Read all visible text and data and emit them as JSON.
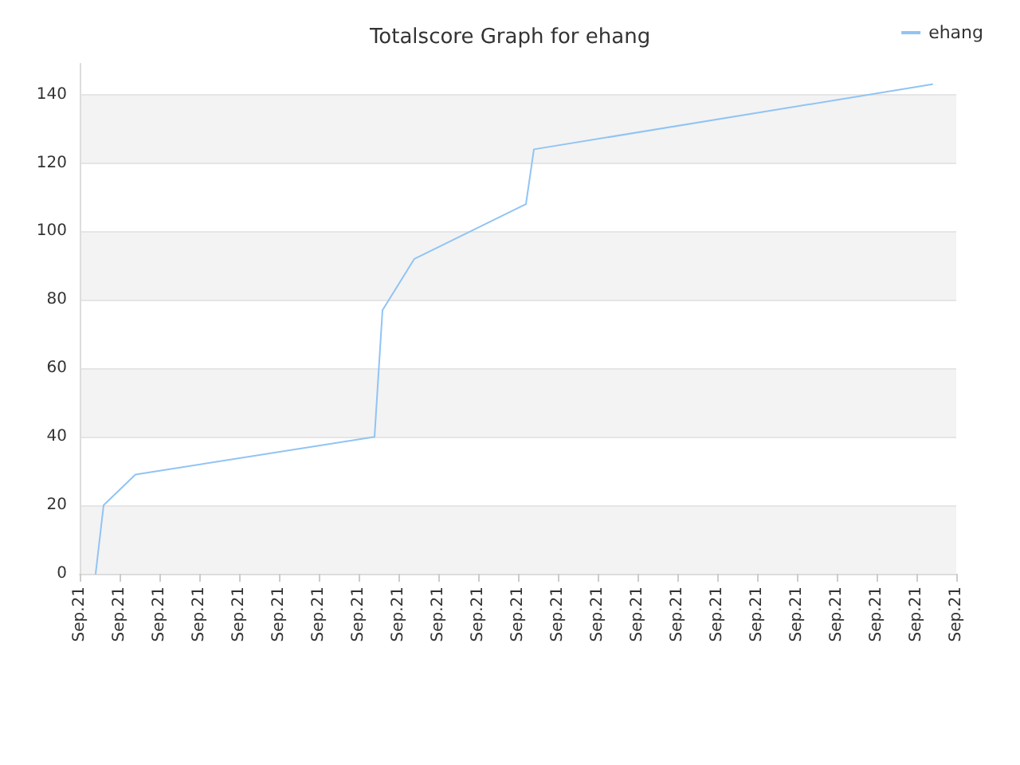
{
  "chart_data": {
    "type": "line",
    "title": "Totalscore Graph for ehang",
    "categories": [
      "Sep.21",
      null,
      null,
      null,
      null,
      "Sep.21",
      null,
      null,
      null,
      null,
      "Sep.21",
      null,
      null,
      null,
      null,
      "Sep.21",
      null,
      null,
      null,
      null,
      "Sep.21",
      null,
      null,
      null,
      null,
      "Sep.21",
      null,
      null,
      null,
      null,
      "Sep.21",
      null,
      null,
      null,
      null,
      "Sep.21",
      null,
      null,
      null,
      null,
      "Sep.21",
      null,
      null,
      null,
      null,
      "Sep.21",
      null,
      null,
      null,
      null,
      "Sep.21",
      null,
      null,
      null,
      null,
      "Sep.21",
      null,
      null,
      null,
      null,
      "Sep.21",
      null,
      null,
      null,
      null,
      "Sep.21",
      null,
      null,
      null,
      null,
      "Sep.21",
      null,
      null,
      null,
      null,
      "Sep.21",
      null,
      null,
      null,
      null,
      "Sep.21",
      null,
      null,
      null,
      null,
      "Sep.21",
      null,
      null,
      null,
      null,
      "Sep.21",
      null,
      null,
      null,
      null,
      "Sep.21",
      null,
      null,
      null,
      null,
      "Sep.21",
      null,
      null,
      null,
      null,
      "Sep.21",
      null,
      null,
      null,
      null,
      "Sep.21"
    ],
    "series": [
      {
        "name": "ehang",
        "color": "#90c4f4",
        "values": [
          null,
          null,
          0,
          20,
          null,
          null,
          null,
          29,
          null,
          null,
          null,
          null,
          null,
          null,
          null,
          null,
          null,
          null,
          null,
          null,
          null,
          null,
          null,
          null,
          null,
          null,
          null,
          null,
          null,
          null,
          null,
          null,
          null,
          null,
          null,
          null,
          null,
          40,
          77,
          null,
          null,
          null,
          92,
          null,
          null,
          null,
          null,
          null,
          null,
          null,
          null,
          null,
          null,
          null,
          null,
          null,
          108,
          124,
          null,
          null,
          null,
          null,
          null,
          null,
          null,
          null,
          null,
          null,
          null,
          null,
          null,
          null,
          null,
          null,
          null,
          null,
          null,
          null,
          null,
          null,
          null,
          null,
          null,
          null,
          null,
          null,
          null,
          null,
          null,
          null,
          null,
          null,
          null,
          null,
          null,
          null,
          null,
          null,
          null,
          null,
          null,
          null,
          null,
          null,
          null,
          null,
          null,
          143,
          null,
          null,
          null
        ]
      }
    ],
    "ylim": [
      0,
      149
    ],
    "yticks": [
      0,
      20,
      40,
      60,
      80,
      100,
      120,
      140
    ],
    "grid": "y",
    "legend": "top right",
    "marker": "none",
    "line_style": "solid"
  }
}
